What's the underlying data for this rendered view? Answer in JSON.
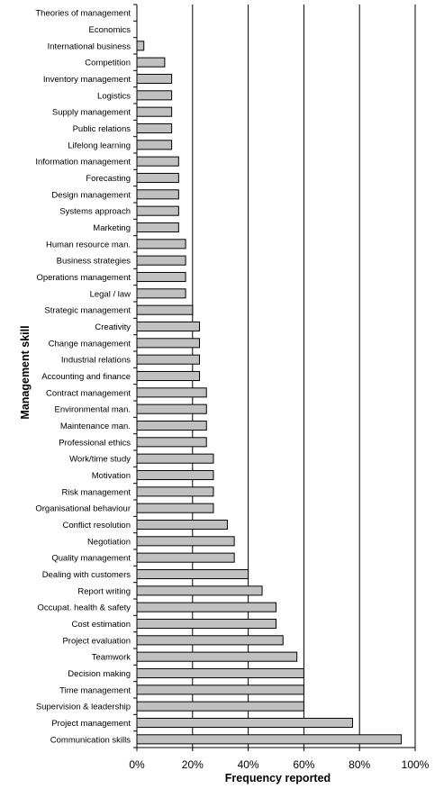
{
  "chart_data": {
    "type": "bar",
    "orientation": "horizontal",
    "xlabel": "Frequency reported",
    "ylabel": "Management skill",
    "xlim": [
      0,
      100
    ],
    "x_ticks": [
      "0%",
      "20%",
      "40%",
      "60%",
      "80%",
      "100%"
    ],
    "grid": "vertical major gridlines on",
    "legend": "none",
    "bar_color": "#c0c0c0",
    "categories": [
      "Theories of management",
      "Economics",
      "International business",
      "Competition",
      "Inventory management",
      "Logistics",
      "Supply management",
      "Public relations",
      "Lifelong learning",
      "Information management",
      "Forecasting",
      "Design management",
      "Systems approach",
      "Marketing",
      "Human resource man.",
      "Business strategies",
      "Operations management",
      "Legal / law",
      "Strategic management",
      "Creativity",
      "Change management",
      "Industrial relations",
      "Accounting and finance",
      "Contract management",
      "Environmental man.",
      "Maintenance man.",
      "Professional ethics",
      "Work/time study",
      "Motivation",
      "Risk management",
      "Organisational behaviour",
      "Conflict resolution",
      "Negotiation",
      "Quality management",
      "Dealing with customers",
      "Report writing",
      "Occupat. health & safety",
      "Cost estimation",
      "Project evaluation",
      "Teamwork",
      "Decision making",
      "Time management",
      "Supervision & leadership",
      "Project management",
      "Communication skills"
    ],
    "values": [
      0,
      0,
      2.5,
      10,
      12.5,
      12.5,
      12.5,
      12.5,
      12.5,
      15,
      15,
      15,
      15,
      15,
      17.5,
      17.5,
      17.5,
      17.5,
      20,
      22.5,
      22.5,
      22.5,
      22.5,
      25,
      25,
      25,
      25,
      27.5,
      27.5,
      27.5,
      27.5,
      32.5,
      35,
      35,
      40,
      45,
      50,
      50,
      52.5,
      57.5,
      60,
      60,
      60,
      77.5,
      95
    ]
  }
}
